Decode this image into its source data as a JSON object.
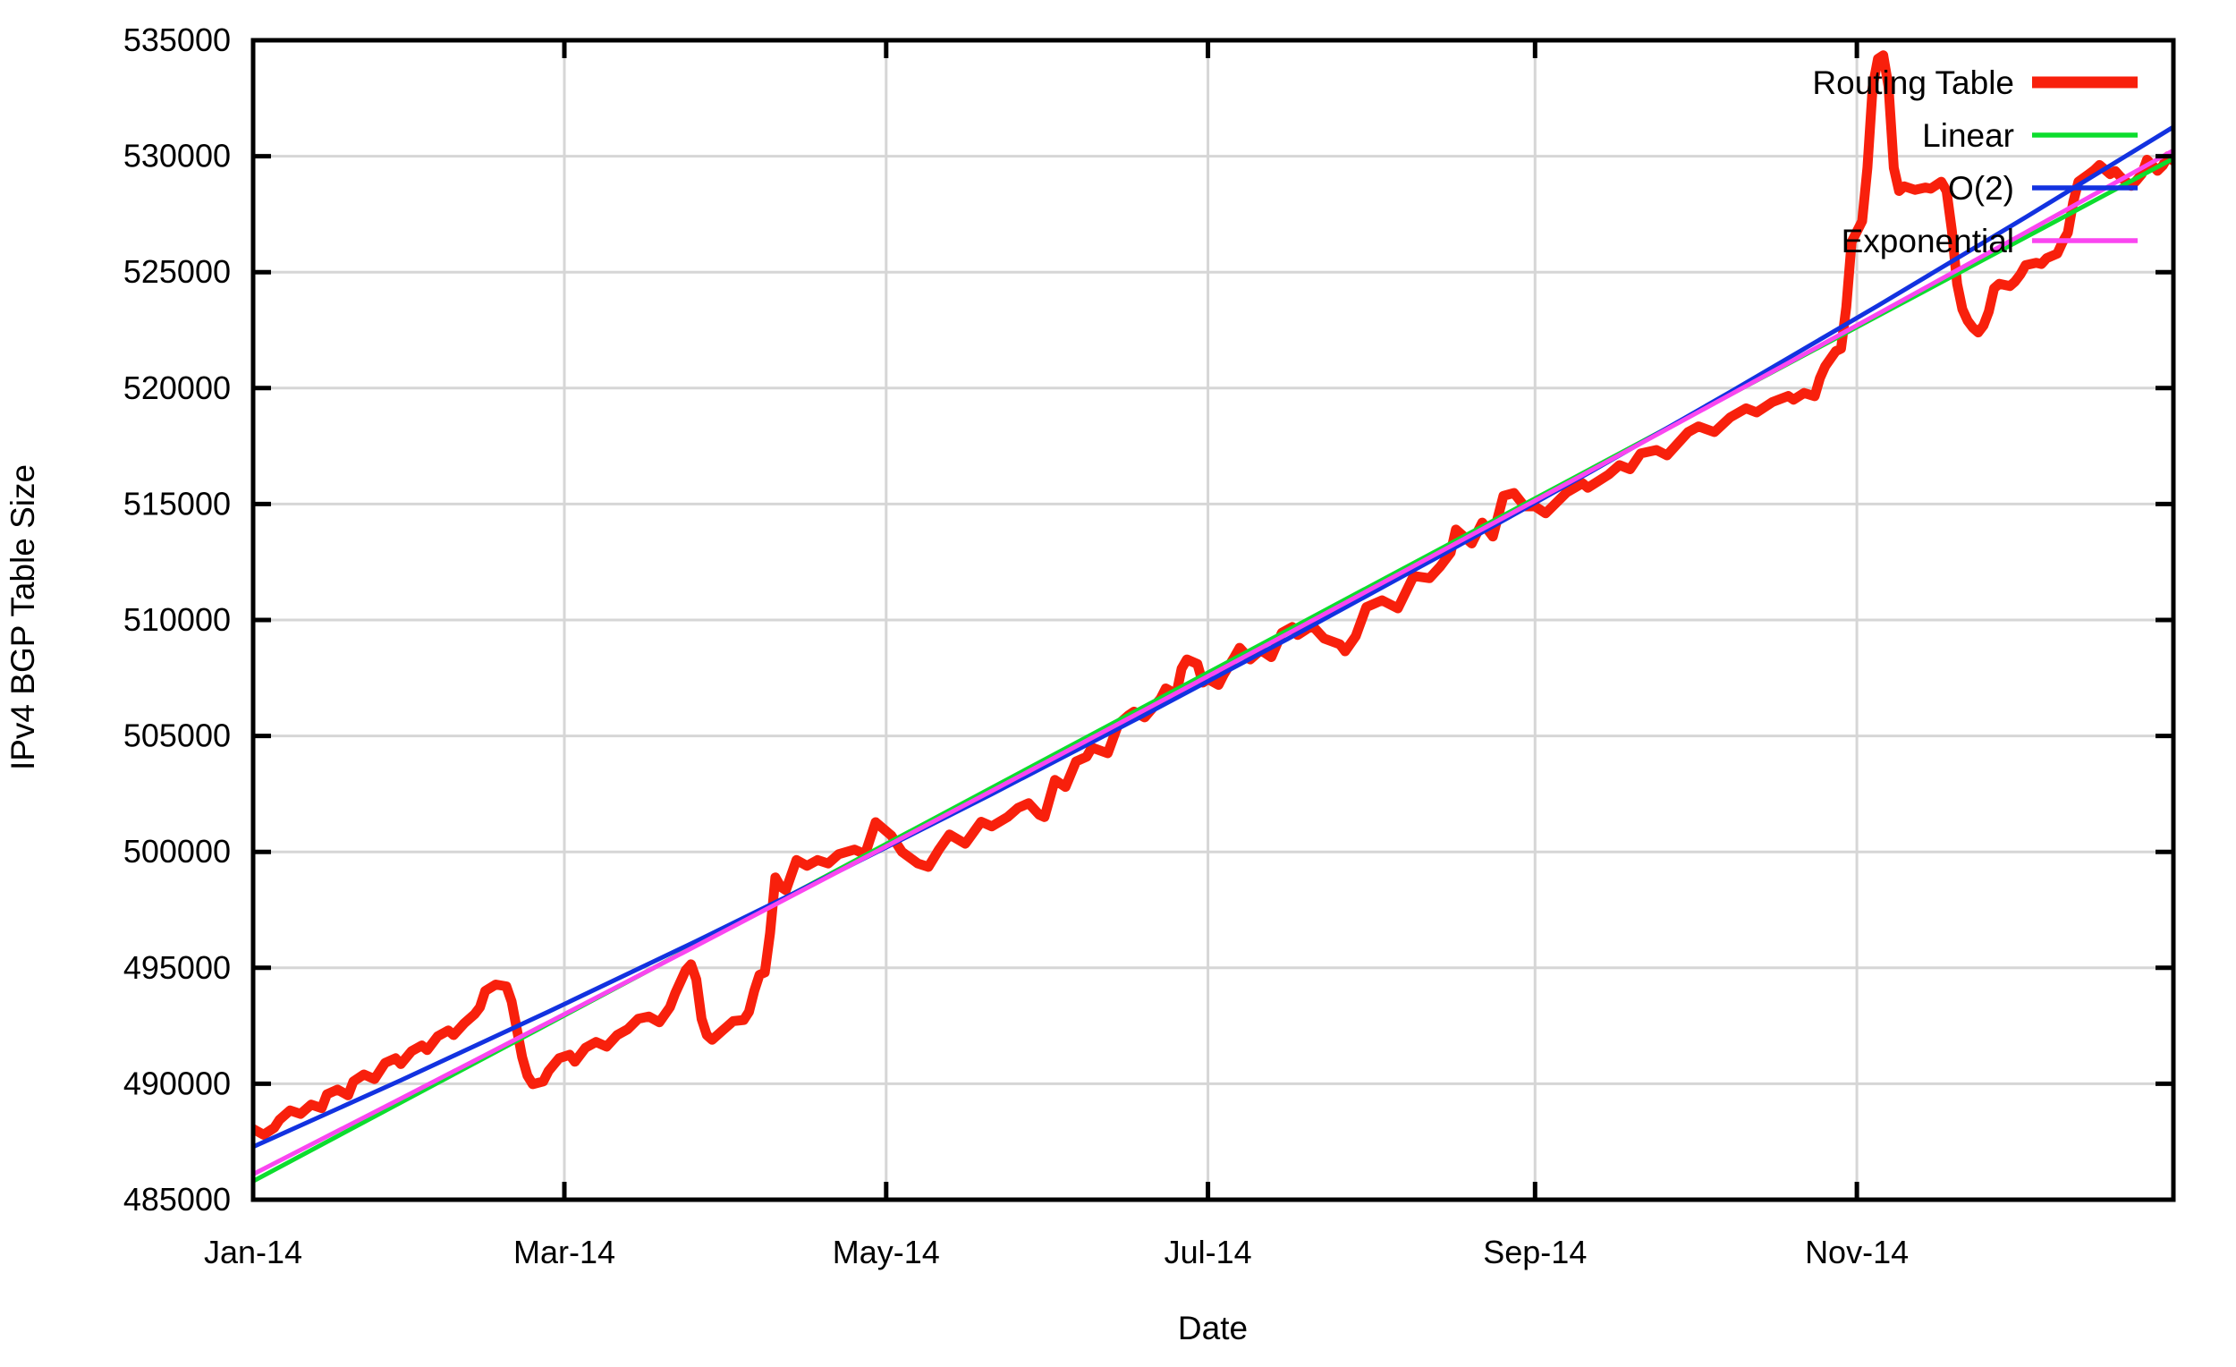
{
  "figure": {
    "ylabel": "IPv4 BGP Table Size",
    "xlabel": "Date",
    "background": "#ffffff",
    "border_color": "#000000",
    "grid_color": "#d6d6d6"
  },
  "legend": {
    "entries": [
      {
        "label": "Routing Table",
        "color": "#f8200c"
      },
      {
        "label": "Linear",
        "color": "#0ddd2e"
      },
      {
        "label": "O(2)",
        "color": "#1232e0"
      },
      {
        "label": "Exponential",
        "color": "#fa46f0"
      }
    ]
  },
  "chart_data": {
    "type": "line",
    "title": "",
    "xlabel": "Date",
    "ylabel": "IPv4 BGP Table Size",
    "x_unit": "days since 1 Jan 2014",
    "xlim": [
      0,
      364
    ],
    "ylim": [
      485000,
      535000
    ],
    "grid": true,
    "legend_position": "top-right-inside",
    "yticks": {
      "values": [
        485000,
        490000,
        495000,
        500000,
        505000,
        510000,
        515000,
        520000,
        525000,
        530000,
        535000
      ],
      "labels": [
        "485000",
        "490000",
        "495000",
        "500000",
        "505000",
        "510000",
        "515000",
        "520000",
        "525000",
        "530000",
        "535000"
      ]
    },
    "xticks": {
      "values": [
        0,
        59,
        120,
        181,
        243,
        304
      ],
      "labels": [
        "Jan-14",
        "Mar-14",
        "May-14",
        "Jul-14",
        "Sep-14",
        "Nov-14"
      ]
    },
    "series": [
      {
        "name": "Routing Table",
        "color": "#f8200c",
        "width": 11,
        "points": [
          [
            0,
            488050
          ],
          [
            2,
            487800
          ],
          [
            4,
            488100
          ],
          [
            5,
            488450
          ],
          [
            7,
            488850
          ],
          [
            9,
            488700
          ],
          [
            11,
            489100
          ],
          [
            13,
            488950
          ],
          [
            14,
            489550
          ],
          [
            16,
            489750
          ],
          [
            18,
            489500
          ],
          [
            19,
            490100
          ],
          [
            21,
            490400
          ],
          [
            23,
            490200
          ],
          [
            25,
            490900
          ],
          [
            27,
            491100
          ],
          [
            28,
            490850
          ],
          [
            30,
            491400
          ],
          [
            32,
            491650
          ],
          [
            33,
            491450
          ],
          [
            35,
            492050
          ],
          [
            37,
            492300
          ],
          [
            38,
            492100
          ],
          [
            40,
            492600
          ],
          [
            42,
            493000
          ],
          [
            43,
            493300
          ],
          [
            44,
            494000
          ],
          [
            46,
            494280
          ],
          [
            48,
            494200
          ],
          [
            49,
            493550
          ],
          [
            50,
            492350
          ],
          [
            51,
            491150
          ],
          [
            52,
            490350
          ],
          [
            53,
            489980
          ],
          [
            55,
            490100
          ],
          [
            56,
            490550
          ],
          [
            58,
            491100
          ],
          [
            60,
            491250
          ],
          [
            61,
            490950
          ],
          [
            63,
            491550
          ],
          [
            65,
            491800
          ],
          [
            67,
            491600
          ],
          [
            69,
            492100
          ],
          [
            71,
            492350
          ],
          [
            73,
            492800
          ],
          [
            75,
            492900
          ],
          [
            77,
            492650
          ],
          [
            79,
            493300
          ],
          [
            80,
            493900
          ],
          [
            81,
            494400
          ],
          [
            82,
            494900
          ],
          [
            83,
            495150
          ],
          [
            84,
            494500
          ],
          [
            85,
            492800
          ],
          [
            86,
            492100
          ],
          [
            87,
            491900
          ],
          [
            89,
            492300
          ],
          [
            91,
            492700
          ],
          [
            93,
            492750
          ],
          [
            94,
            493100
          ],
          [
            95,
            494000
          ],
          [
            96,
            494700
          ],
          [
            97,
            494800
          ],
          [
            98,
            496500
          ],
          [
            99,
            498900
          ],
          [
            100,
            498500
          ],
          [
            101,
            498350
          ],
          [
            103,
            499650
          ],
          [
            105,
            499400
          ],
          [
            107,
            499650
          ],
          [
            109,
            499500
          ],
          [
            111,
            499900
          ],
          [
            114,
            500100
          ],
          [
            116,
            499900
          ],
          [
            118,
            501280
          ],
          [
            121,
            500700
          ],
          [
            123,
            500000
          ],
          [
            126,
            499500
          ],
          [
            128,
            499350
          ],
          [
            130,
            500100
          ],
          [
            132,
            500750
          ],
          [
            135,
            500350
          ],
          [
            138,
            501300
          ],
          [
            140,
            501100
          ],
          [
            143,
            501500
          ],
          [
            145,
            501900
          ],
          [
            147,
            502100
          ],
          [
            149,
            501600
          ],
          [
            150,
            501500
          ],
          [
            152,
            503100
          ],
          [
            154,
            502800
          ],
          [
            156,
            503900
          ],
          [
            158,
            504100
          ],
          [
            159,
            504500
          ],
          [
            162,
            504250
          ],
          [
            164,
            505500
          ],
          [
            166,
            505900
          ],
          [
            167,
            506050
          ],
          [
            169,
            505800
          ],
          [
            172,
            506600
          ],
          [
            173,
            507050
          ],
          [
            175,
            506800
          ],
          [
            176,
            507900
          ],
          [
            177,
            508300
          ],
          [
            179,
            508100
          ],
          [
            180,
            507300
          ],
          [
            181,
            507450
          ],
          [
            183,
            507200
          ],
          [
            184,
            507650
          ],
          [
            186,
            508400
          ],
          [
            187,
            508800
          ],
          [
            189,
            508300
          ],
          [
            191,
            508700
          ],
          [
            193,
            508400
          ],
          [
            195,
            509450
          ],
          [
            197,
            509700
          ],
          [
            198,
            509350
          ],
          [
            200,
            509650
          ],
          [
            201,
            509700
          ],
          [
            203,
            509200
          ],
          [
            206,
            508950
          ],
          [
            207,
            508650
          ],
          [
            209,
            509300
          ],
          [
            211,
            510550
          ],
          [
            214,
            510850
          ],
          [
            217,
            510500
          ],
          [
            220,
            511900
          ],
          [
            223,
            511800
          ],
          [
            225,
            512300
          ],
          [
            227,
            512900
          ],
          [
            228,
            513900
          ],
          [
            231,
            513300
          ],
          [
            233,
            514200
          ],
          [
            235,
            513600
          ],
          [
            237,
            515350
          ],
          [
            239,
            515480
          ],
          [
            241,
            514900
          ],
          [
            243,
            514900
          ],
          [
            245,
            514600
          ],
          [
            249,
            515500
          ],
          [
            252,
            515900
          ],
          [
            253,
            515700
          ],
          [
            257,
            516280
          ],
          [
            259,
            516680
          ],
          [
            261,
            516500
          ],
          [
            263,
            517180
          ],
          [
            266,
            517330
          ],
          [
            268,
            517100
          ],
          [
            272,
            518100
          ],
          [
            274,
            518350
          ],
          [
            277,
            518100
          ],
          [
            280,
            518740
          ],
          [
            283,
            519130
          ],
          [
            285,
            518950
          ],
          [
            288,
            519400
          ],
          [
            291,
            519660
          ],
          [
            292,
            519500
          ],
          [
            294,
            519790
          ],
          [
            296,
            519650
          ],
          [
            297,
            520430
          ],
          [
            298,
            520940
          ],
          [
            300,
            521590
          ],
          [
            301,
            521700
          ],
          [
            302,
            523500
          ],
          [
            303,
            526300
          ],
          [
            305,
            527200
          ],
          [
            306,
            529500
          ],
          [
            307,
            533000
          ],
          [
            308,
            534200
          ],
          [
            309,
            534350
          ],
          [
            310,
            533000
          ],
          [
            311,
            529500
          ],
          [
            312,
            528500
          ],
          [
            313,
            528700
          ],
          [
            315,
            528550
          ],
          [
            317,
            528650
          ],
          [
            318,
            528600
          ],
          [
            320,
            528900
          ],
          [
            321,
            528500
          ],
          [
            322,
            526800
          ],
          [
            323,
            524500
          ],
          [
            324,
            523400
          ],
          [
            325,
            522900
          ],
          [
            326,
            522600
          ],
          [
            327,
            522400
          ],
          [
            328,
            522700
          ],
          [
            329,
            523300
          ],
          [
            330,
            524300
          ],
          [
            331,
            524500
          ],
          [
            333,
            524400
          ],
          [
            334,
            524600
          ],
          [
            335,
            524900
          ],
          [
            336,
            525300
          ],
          [
            338,
            525400
          ],
          [
            339,
            525350
          ],
          [
            340,
            525600
          ],
          [
            342,
            525800
          ],
          [
            343,
            526300
          ],
          [
            344,
            526700
          ],
          [
            345,
            528000
          ],
          [
            346,
            528900
          ],
          [
            348,
            529230
          ],
          [
            349,
            529400
          ],
          [
            350,
            529620
          ],
          [
            352,
            529230
          ],
          [
            353,
            529360
          ],
          [
            354,
            529100
          ],
          [
            356,
            528720
          ],
          [
            357,
            528950
          ],
          [
            358,
            529230
          ],
          [
            359,
            529850
          ],
          [
            361,
            529370
          ],
          [
            362,
            529600
          ],
          [
            363,
            530000
          ],
          [
            364,
            529800
          ]
        ]
      },
      {
        "name": "Linear",
        "color": "#0ddd2e",
        "width": 5,
        "points": [
          [
            0,
            485800
          ],
          [
            28,
            489192
          ],
          [
            56,
            492584
          ],
          [
            84,
            495977
          ],
          [
            112,
            499369
          ],
          [
            140,
            502761
          ],
          [
            168,
            506153
          ],
          [
            196,
            509545
          ],
          [
            224,
            512938
          ],
          [
            252,
            516330
          ],
          [
            280,
            519722
          ],
          [
            308,
            523114
          ],
          [
            336,
            526506
          ],
          [
            364,
            529900
          ]
        ]
      },
      {
        "name": "O(2)",
        "color": "#1232e0",
        "width": 5,
        "points": [
          [
            0,
            487280
          ],
          [
            28,
            490151
          ],
          [
            56,
            493108
          ],
          [
            84,
            496151
          ],
          [
            112,
            499279
          ],
          [
            140,
            502491
          ],
          [
            168,
            505789
          ],
          [
            196,
            509172
          ],
          [
            224,
            512641
          ],
          [
            252,
            516194
          ],
          [
            280,
            519832
          ],
          [
            308,
            523556
          ],
          [
            336,
            527365
          ],
          [
            364,
            531261
          ]
        ]
      },
      {
        "name": "Exponential",
        "color": "#fa46f0",
        "width": 5,
        "points": [
          [
            0,
            486100
          ],
          [
            28,
            489361
          ],
          [
            56,
            492645
          ],
          [
            84,
            495950
          ],
          [
            112,
            499277
          ],
          [
            140,
            502627
          ],
          [
            168,
            505999
          ],
          [
            196,
            509394
          ],
          [
            224,
            512811
          ],
          [
            252,
            516251
          ],
          [
            280,
            519715
          ],
          [
            308,
            523202
          ],
          [
            336,
            526712
          ],
          [
            364,
            530246
          ]
        ]
      }
    ]
  },
  "layout_note": "plot box 283,45 to 2430,1341"
}
